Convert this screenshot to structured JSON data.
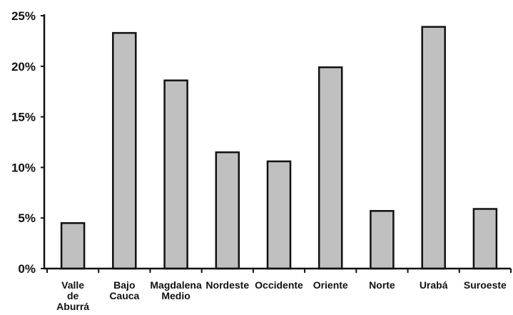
{
  "chart_data": {
    "type": "bar",
    "title": "",
    "xlabel": "",
    "ylabel": "",
    "categories": [
      [
        "Valle",
        "de",
        "Aburrá"
      ],
      [
        "Bajo",
        "Cauca"
      ],
      [
        "Magdalena",
        "Medio"
      ],
      [
        "Nordeste"
      ],
      [
        "Occidente"
      ],
      [
        "Oriente"
      ],
      [
        "Norte"
      ],
      [
        "Urabá"
      ],
      [
        "Suroeste"
      ]
    ],
    "values": [
      4.5,
      23.3,
      18.6,
      11.5,
      10.6,
      19.9,
      5.7,
      23.9,
      5.9
    ],
    "unit": "%",
    "ylim": [
      0,
      25
    ],
    "yticks": [
      0,
      5,
      10,
      15,
      20,
      25
    ],
    "ytick_labels": [
      "0%",
      "5%",
      "10%",
      "15%",
      "20%",
      "25%"
    ],
    "grid": false,
    "legend": "none",
    "bar_color": "#c0c0c0",
    "bar_edge_color": "#111111"
  }
}
